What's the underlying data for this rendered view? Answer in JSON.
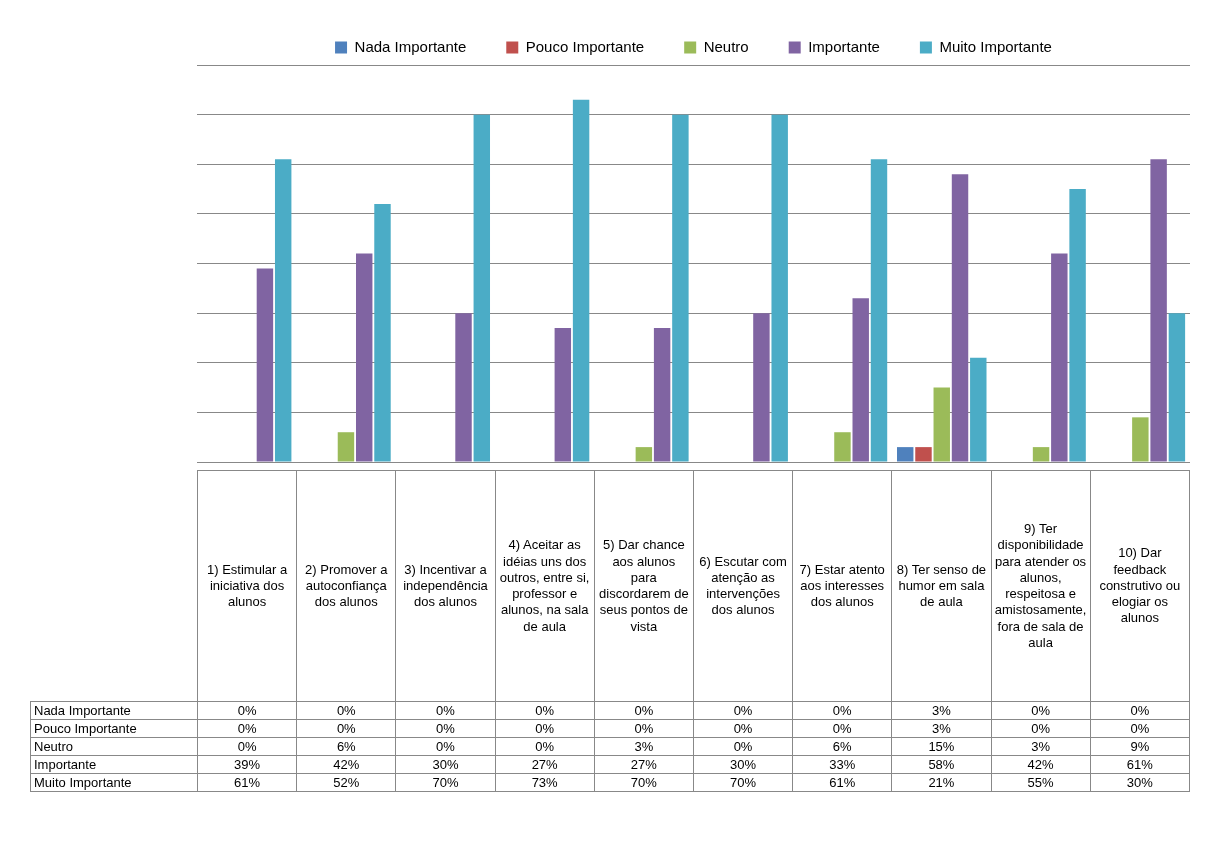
{
  "chart_data": {
    "type": "bar",
    "categories": [
      "1) Estimular a iniciativa dos alunos",
      "2) Promover a autoconfiança dos alunos",
      "3) Incentivar a independência dos alunos",
      "4) Aceitar as idéias uns dos outros, entre si, professor e alunos, na sala de aula",
      "5) Dar chance aos alunos para discordarem de seus pontos de vista",
      "6) Escutar com atenção as intervenções dos alunos",
      "7) Estar atento aos interesses dos alunos",
      "8) Ter senso de humor em sala de aula",
      "9) Ter disponibilidade para atender os alunos, respeitosa e amistosamente, fora de sala de aula",
      "10) Dar feedback construtivo ou elogiar os alunos"
    ],
    "series": [
      {
        "name": "Nada Importante",
        "color": "#4f81bd",
        "values": [
          0,
          0,
          0,
          0,
          0,
          0,
          0,
          3,
          0,
          0
        ],
        "value_labels": [
          "0%",
          "0%",
          "0%",
          "0%",
          "0%",
          "0%",
          "0%",
          "3%",
          "0%",
          "0%"
        ]
      },
      {
        "name": "Pouco Importante",
        "color": "#c0504d",
        "values": [
          0,
          0,
          0,
          0,
          0,
          0,
          0,
          3,
          0,
          0
        ],
        "value_labels": [
          "0%",
          "0%",
          "0%",
          "0%",
          "0%",
          "0%",
          "0%",
          "3%",
          "0%",
          "0%"
        ]
      },
      {
        "name": "Neutro",
        "color": "#9bbb59",
        "values": [
          0,
          6,
          0,
          0,
          3,
          0,
          6,
          15,
          3,
          9
        ],
        "value_labels": [
          "0%",
          "6%",
          "0%",
          "0%",
          "3%",
          "0%",
          "6%",
          "15%",
          "3%",
          "9%"
        ]
      },
      {
        "name": "Importante",
        "color": "#8064a2",
        "values": [
          39,
          42,
          30,
          27,
          27,
          30,
          33,
          58,
          42,
          61
        ],
        "value_labels": [
          "39%",
          "42%",
          "30%",
          "27%",
          "27%",
          "30%",
          "33%",
          "58%",
          "42%",
          "61%"
        ]
      },
      {
        "name": "Muito Importante",
        "color": "#4bacc6",
        "values": [
          61,
          52,
          70,
          73,
          70,
          70,
          61,
          21,
          55,
          30
        ],
        "value_labels": [
          "61%",
          "52%",
          "70%",
          "73%",
          "70%",
          "70%",
          "61%",
          "21%",
          "55%",
          "30%"
        ]
      }
    ],
    "ylim": [
      0,
      80
    ],
    "grid": "y",
    "legend": "top",
    "tick_labels": "x"
  }
}
